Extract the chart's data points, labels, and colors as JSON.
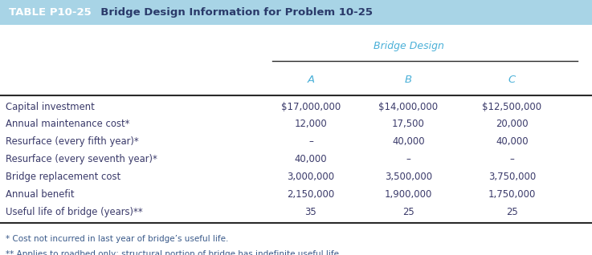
{
  "title_label": "TABLE P10-25",
  "title_text": "  Bridge Design Information for Problem 10-25",
  "header_bg": "#a8d4e6",
  "subheader_text": "Bridge Design",
  "subheader_color": "#4ab0d8",
  "col_headers": [
    "A",
    "B",
    "C"
  ],
  "col_header_color": "#4ab0d8",
  "row_labels": [
    "Capital investment",
    "Annual maintenance cost*",
    "Resurface (every fifth year)*",
    "Resurface (every seventh year)*",
    "Bridge replacement cost",
    "Annual benefit",
    "Useful life of bridge (years)**"
  ],
  "data": [
    [
      "$17,000,000",
      "$14,000,000",
      "$12,500,000"
    ],
    [
      "12,000",
      "17,500",
      "20,000"
    ],
    [
      "–",
      "40,000",
      "40,000"
    ],
    [
      "40,000",
      "–",
      "–"
    ],
    [
      "3,000,000",
      "3,500,000",
      "3,750,000"
    ],
    [
      "2,150,000",
      "1,900,000",
      "1,750,000"
    ],
    [
      "35",
      "25",
      "25"
    ]
  ],
  "footnote1": "* Cost not incurred in last year of bridge’s useful life.",
  "footnote2": "** Applies to roadbed only; structural portion of bridge has indefinite useful life.",
  "footnote_color": "#3a5a8a",
  "text_color": "#3a3a6a",
  "label_color": "#3a3a6a",
  "title_label_color": "#ffffff",
  "title_text_color": "#2a3a6a",
  "line_color": "#2a2a2a",
  "figsize": [
    7.37,
    3.18
  ],
  "dpi": 100
}
